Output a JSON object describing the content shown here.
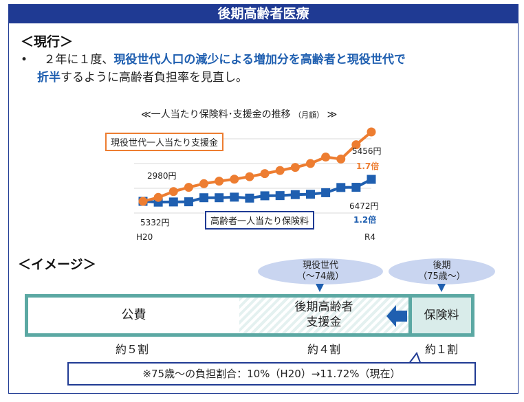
{
  "header": {
    "title": "後期高齢者医療"
  },
  "current": {
    "heading": "＜現行＞",
    "bullet": "•",
    "line1_pre": "２年に１度、",
    "line1_em": "現役世代人口の減少による増加分を高齢者と現役世代で",
    "line2_em": "折半",
    "line2_post": "するように高齢者負担率を見直し。"
  },
  "chart": {
    "title_main": "≪一人当たり保険料･支援金の推移",
    "title_unit": "（月額）",
    "title_end": "≫",
    "x_start": "H20",
    "x_end": "R4",
    "orange_label": "現役世代一人当たり支援金",
    "blue_label": "高齢者一人当たり保険料",
    "orange_start": "2980円",
    "orange_end": "5456円",
    "orange_mult": "1.7倍",
    "blue_start": "5332円",
    "blue_end": "6472円",
    "blue_mult": "1.2倍"
  },
  "chart_data": {
    "type": "line",
    "title": "≪一人当たり保険料･支援金の推移（月額）≫",
    "x_labels": [
      "H20",
      "R4"
    ],
    "series": [
      {
        "name": "現役世代一人当たり支援金",
        "color": "#ed7d31",
        "start": 2980,
        "end": 5456,
        "values": [
          2980,
          3120,
          3330,
          3480,
          3610,
          3700,
          3770,
          3860,
          3970,
          4080,
          4190,
          4330,
          4560,
          4490,
          5000,
          5456
        ]
      },
      {
        "name": "高齢者一人当たり保険料",
        "color": "#1f5fb0",
        "start": 5332,
        "end": 6472,
        "values": [
          5332,
          5290,
          5300,
          5310,
          5520,
          5520,
          5550,
          5500,
          5620,
          5630,
          5680,
          5700,
          5780,
          6050,
          6060,
          6472
        ]
      }
    ]
  },
  "image_section": {
    "heading": "＜イメージ＞",
    "bubble_left_line1": "現役世代",
    "bubble_left_line2": "（～74歳）",
    "bubble_right_line1": "後期",
    "bubble_right_line2": "（75歳～）",
    "seg_public": "公費",
    "seg_support_line1": "後期高齢者",
    "seg_support_line2": "支援金",
    "seg_premium": "保険料",
    "ratio_public": "約５割",
    "ratio_support": "約４割",
    "ratio_premium": "約１割",
    "note": "※75歳～の負担割合：10%（H20）→11.72%（現在）",
    "colors": {
      "teal": "#5ba8a3",
      "blue": "#1f5fb0"
    }
  }
}
